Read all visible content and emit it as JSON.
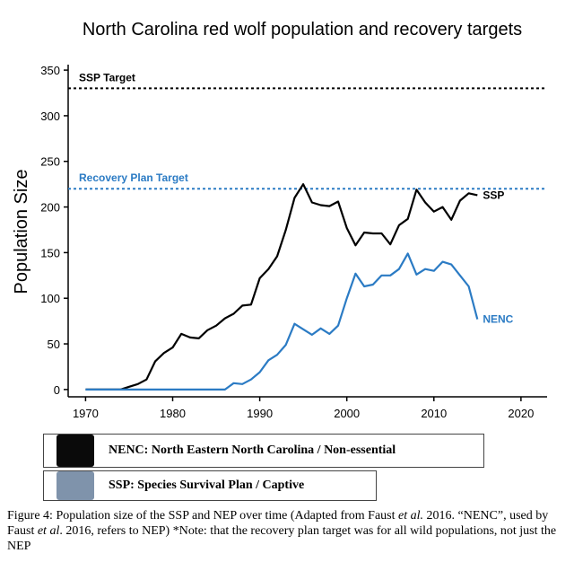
{
  "chart_data": {
    "type": "line",
    "title": "North Carolina red wolf population and recovery targets",
    "xlabel": "",
    "ylabel": "Population Size",
    "xlim": [
      1968,
      2023
    ],
    "ylim": [
      -8,
      356
    ],
    "x_ticks": [
      1970,
      1980,
      1990,
      2000,
      2010,
      2020
    ],
    "y_ticks": [
      0,
      50,
      100,
      150,
      200,
      250,
      300,
      350
    ],
    "grid": false,
    "series": [
      {
        "name": "SSP",
        "color": "#000000",
        "x": [
          1970,
          1971,
          1972,
          1973,
          1974,
          1975,
          1976,
          1977,
          1978,
          1979,
          1980,
          1981,
          1982,
          1983,
          1984,
          1985,
          1986,
          1987,
          1988,
          1989,
          1990,
          1991,
          1992,
          1993,
          1994,
          1995,
          1996,
          1997,
          1998,
          1999,
          2000,
          2001,
          2002,
          2003,
          2004,
          2005,
          2006,
          2007,
          2008,
          2009,
          2010,
          2011,
          2012,
          2013,
          2014,
          2015
        ],
        "values": [
          0,
          0,
          0,
          0,
          0,
          3,
          6,
          11,
          31,
          40,
          46,
          61,
          57,
          56,
          65,
          70,
          78,
          83,
          92,
          93,
          122,
          132,
          146,
          175,
          210,
          225,
          205,
          202,
          201,
          206,
          177,
          158,
          172,
          171,
          171,
          159,
          180,
          187,
          219,
          205,
          195,
          200,
          186,
          207,
          215,
          213
        ]
      },
      {
        "name": "NENC",
        "color": "#2b7bc4",
        "x": [
          1970,
          1971,
          1972,
          1973,
          1974,
          1975,
          1976,
          1977,
          1978,
          1979,
          1980,
          1981,
          1982,
          1983,
          1984,
          1985,
          1986,
          1987,
          1988,
          1989,
          1990,
          1991,
          1992,
          1993,
          1994,
          1995,
          1996,
          1997,
          1998,
          1999,
          2000,
          2001,
          2002,
          2003,
          2004,
          2005,
          2006,
          2007,
          2008,
          2009,
          2010,
          2011,
          2012,
          2013,
          2014,
          2015
        ],
        "values": [
          0,
          0,
          0,
          0,
          0,
          0,
          0,
          0,
          0,
          0,
          0,
          0,
          0,
          0,
          0,
          0,
          0,
          7,
          6,
          11,
          19,
          32,
          38,
          49,
          72,
          66,
          60,
          67,
          61,
          70,
          100,
          127,
          113,
          115,
          125,
          125,
          132,
          149,
          126,
          132,
          130,
          140,
          137,
          125,
          113,
          77
        ]
      }
    ],
    "reference_lines": [
      {
        "label": "SSP Target",
        "value": 330,
        "color": "#000000"
      },
      {
        "label": "Recovery Plan Target",
        "value": 220,
        "color": "#2b7bc4"
      }
    ],
    "legend": [
      {
        "label": "NENC: North Eastern North Carolina / Non-essential",
        "color": "#0a0a0a"
      },
      {
        "label": "SSP: Species Survival Plan / Captive",
        "color": "#7f93ab"
      }
    ]
  },
  "caption": {
    "prefix": "Figure 4: Population size of the SSP and NEP over time (Adapted from Faust ",
    "et_al_1": "et al.",
    "mid": " 2016. “NENC”, used by Faust ",
    "et_al_2": "et al",
    "suffix": ". 2016, refers to NEP) *Note: that the recovery plan target was for all wild populations, not just the NEP"
  }
}
